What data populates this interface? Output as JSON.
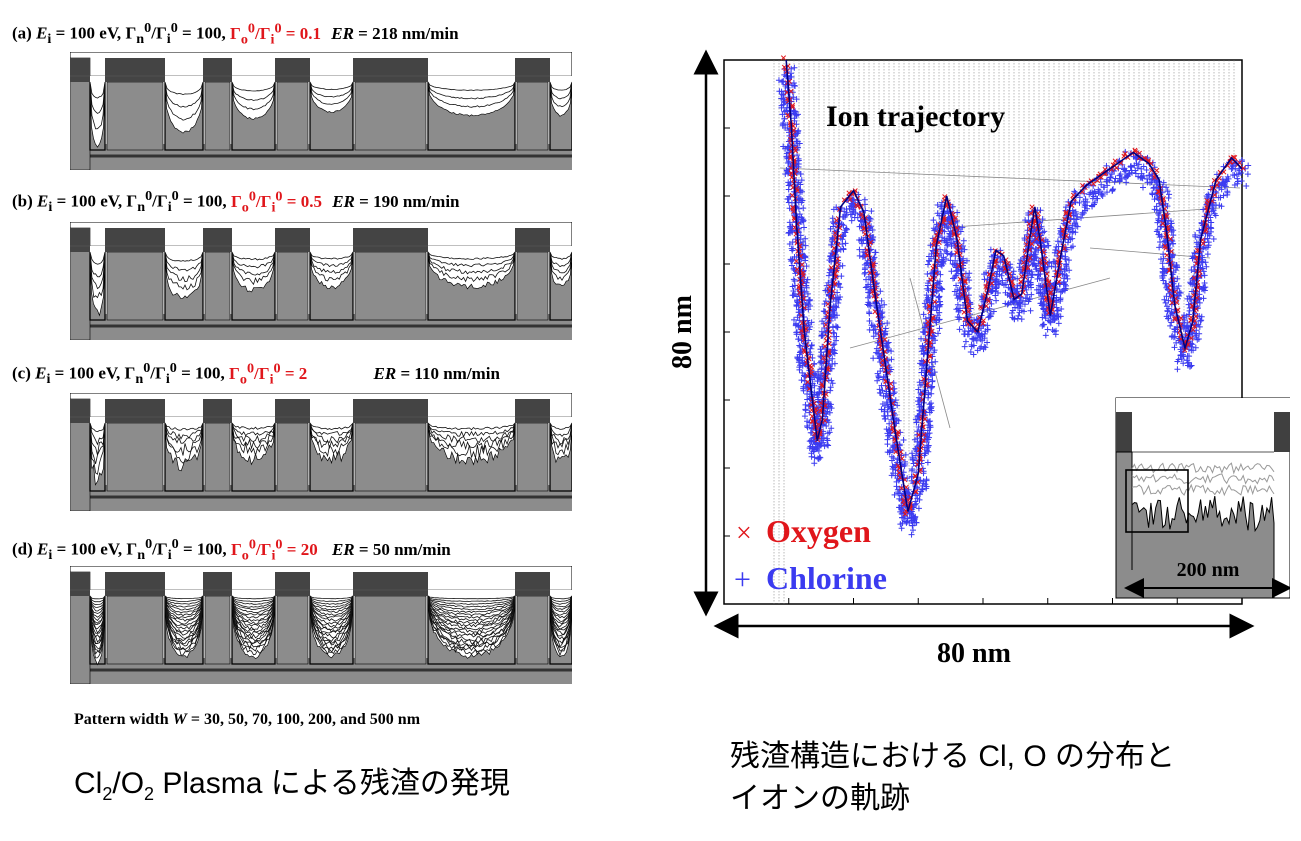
{
  "panels": [
    {
      "tag": "(a)",
      "ratio_value": "0.1",
      "er_value": "218 nm/min",
      "noise": 0.15,
      "depths": [
        0.95,
        0.75,
        0.55,
        0.45,
        0.5
      ],
      "level_count": 4
    },
    {
      "tag": "(b)",
      "ratio_value": "0.5",
      "er_value": "190 nm/min",
      "noise": 0.45,
      "depths": [
        0.95,
        0.75,
        0.6,
        0.55,
        0.55
      ],
      "level_count": 5
    },
    {
      "tag": "(c)",
      "ratio_value": "2",
      "er_value": "110 nm/min",
      "noise": 0.85,
      "depths": [
        0.95,
        0.72,
        0.6,
        0.6,
        0.62
      ],
      "level_count": 6
    },
    {
      "tag": "(d)",
      "ratio_value": "20",
      "er_value": "50 nm/min",
      "noise": 0.25,
      "depths": [
        1.0,
        0.92,
        0.92,
        0.92,
        0.92
      ],
      "level_count": 22
    }
  ],
  "label_parts": {
    "ei": "E",
    "ei_sub": "i",
    "ei_val": " = 100 eV,  ",
    "gamma_n": "Γ",
    "n_sub": "n",
    "sup0": "0",
    "slash": "/",
    "gamma_i": "Γ",
    "i_sub": "i",
    "eq100": " = 100,  ",
    "gamma_o": "Γ",
    "o_sub": "o",
    "eq": " = ",
    "er": "ER",
    "er_eq": " = "
  },
  "pattern_width": {
    "prefix": "Pattern width ",
    "var": "W",
    "suffix": " = 30, 50, 70, 100, 200, and 500 nm"
  },
  "caption_left": {
    "cl": "Cl",
    "sub2a": "2",
    "slash": "/O",
    "sub2b": "2",
    "rest": " Plasma による残渣の発現"
  },
  "caption_right": {
    "line1": "残渣構造における Cl, O の分布と",
    "line2": "イオンの軌跡"
  },
  "right_figure": {
    "title": "Ion trajectory",
    "y_label": "80 nm",
    "x_label": "80 nm",
    "legend_oxygen_marker": "×",
    "legend_oxygen": "Oxygen",
    "legend_chlorine_marker": "+",
    "legend_chlorine": "Chlorine",
    "inset_label": "200 nm",
    "colors": {
      "oxygen": "#e0161b",
      "chlorine": "#3b3bf0",
      "trajectory": "#777777",
      "surface": "#000080"
    }
  }
}
